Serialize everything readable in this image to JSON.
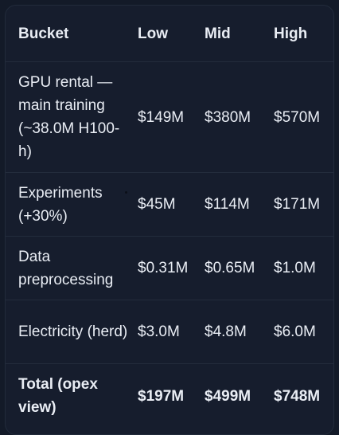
{
  "table": {
    "headers": [
      "Bucket",
      "Low",
      "Mid",
      "High"
    ],
    "rows": [
      {
        "bucket": "GPU rental — main training (~38.0M H100-h)",
        "low": "$149M",
        "mid": "$380M",
        "high": "$570M"
      },
      {
        "bucket": "Experiments (+30%)",
        "low": "$45M",
        "mid": "$114M",
        "high": "$171M"
      },
      {
        "bucket": "Data preprocessing",
        "low": "$0.31M",
        "mid": "$0.65M",
        "high": "$1.0M"
      },
      {
        "bucket": "Electricity (herd)",
        "low": "$3.0M",
        "mid": "$4.8M",
        "high": "$6.0M"
      }
    ],
    "total": {
      "bucket": "Total (opex view)",
      "low": "$197M",
      "mid": "$499M",
      "high": "$748M"
    }
  }
}
